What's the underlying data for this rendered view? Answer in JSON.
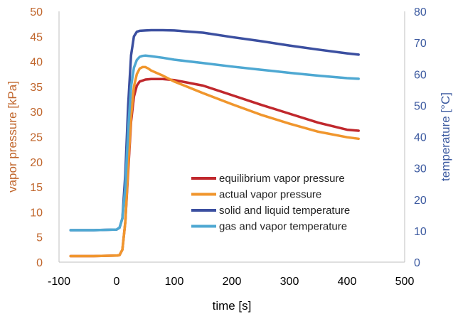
{
  "chart_data": {
    "type": "line",
    "xlabel": "time [s]",
    "ylabel_left": "vapor pressure [kPa]",
    "ylabel_right": "temperature [°C]",
    "xlim": [
      -100,
      500
    ],
    "ylim_left": [
      0,
      50
    ],
    "ylim_right": [
      0,
      80
    ],
    "x_ticks": [
      "-100",
      "0",
      "100",
      "200",
      "300",
      "400",
      "500"
    ],
    "y_left_ticks": [
      "0",
      "5",
      "10",
      "15",
      "20",
      "25",
      "30",
      "35",
      "40",
      "45",
      "50"
    ],
    "y_right_ticks": [
      "0",
      "10",
      "20",
      "30",
      "40",
      "50",
      "60",
      "70",
      "80"
    ],
    "grid": false,
    "legend_position": "bottom-right",
    "colors": {
      "left_axis": "#c0652b",
      "right_axis": "#3c5aa0",
      "frame": "#bfbfbf",
      "tick_text": "#000000"
    },
    "series": [
      {
        "name": "equilibrium vapor pressure",
        "axis": "left",
        "color": "#c0282d",
        "x": [
          -80,
          -40,
          0,
          5,
          10,
          15,
          20,
          25,
          30,
          35,
          40,
          50,
          60,
          80,
          100,
          150,
          200,
          250,
          300,
          350,
          400,
          420
        ],
        "y": [
          1.2,
          1.2,
          1.3,
          1.4,
          2.5,
          8,
          18,
          28,
          33,
          35.2,
          36,
          36.4,
          36.5,
          36.5,
          36.3,
          35.2,
          33.3,
          31.4,
          29.6,
          27.8,
          26.4,
          26.2
        ]
      },
      {
        "name": "actual vapor pressure",
        "axis": "left",
        "color": "#f0962d",
        "x": [
          -80,
          -40,
          0,
          5,
          10,
          15,
          20,
          25,
          30,
          35,
          40,
          45,
          50,
          55,
          60,
          80,
          100,
          150,
          200,
          250,
          300,
          350,
          400,
          420
        ],
        "y": [
          1.2,
          1.2,
          1.3,
          1.4,
          2.5,
          8,
          19,
          29,
          35,
          37.5,
          38.6,
          38.9,
          38.9,
          38.6,
          38.2,
          37.2,
          36,
          33.7,
          31.5,
          29.4,
          27.6,
          26,
          24.9,
          24.6
        ]
      },
      {
        "name": "solid and liquid temperature",
        "axis": "right",
        "color": "#3b4fa0",
        "x": [
          -80,
          -40,
          0,
          5,
          10,
          15,
          20,
          25,
          30,
          35,
          40,
          50,
          60,
          80,
          100,
          150,
          200,
          250,
          300,
          350,
          400,
          420
        ],
        "y": [
          10.2,
          10.2,
          10.4,
          11,
          14,
          28,
          50,
          66,
          72,
          73.5,
          73.8,
          73.9,
          74,
          74,
          73.9,
          73.2,
          71.8,
          70.5,
          69.1,
          67.8,
          66.6,
          66.2
        ]
      },
      {
        "name": "gas and vapor temperature",
        "axis": "right",
        "color": "#4ea8d2",
        "x": [
          -80,
          -40,
          0,
          5,
          10,
          15,
          20,
          25,
          30,
          35,
          40,
          45,
          50,
          60,
          80,
          100,
          150,
          200,
          250,
          300,
          350,
          400,
          420
        ],
        "y": [
          10.2,
          10.2,
          10.4,
          11,
          14,
          24,
          42,
          56,
          62,
          64.5,
          65.5,
          65.8,
          65.9,
          65.7,
          65.2,
          64.6,
          63.5,
          62.4,
          61.4,
          60.4,
          59.5,
          58.7,
          58.5
        ]
      }
    ]
  }
}
